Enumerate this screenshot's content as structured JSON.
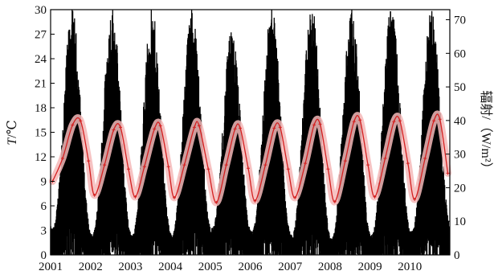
{
  "chart_data": {
    "type": "line",
    "x_axis": {
      "range": [
        2001,
        2011
      ],
      "ticks": [
        2001,
        2002,
        2003,
        2004,
        2005,
        2006,
        2007,
        2008,
        2009,
        2010
      ],
      "tick_labels": [
        "2001",
        "2002",
        "2003",
        "2004",
        "2005",
        "2006",
        "2007",
        "2008",
        "2009",
        "2010"
      ]
    },
    "y_left": {
      "label_italic": "T",
      "label_rest": "/℃",
      "range": [
        0,
        30
      ],
      "ticks": [
        0,
        3,
        6,
        9,
        12,
        15,
        18,
        21,
        24,
        27,
        30
      ],
      "tick_labels": [
        "0",
        "3",
        "6",
        "9",
        "12",
        "15",
        "18",
        "21",
        "24",
        "27",
        "30"
      ]
    },
    "y_right": {
      "label": "辐射/（W/m²）",
      "range": [
        0,
        73
      ],
      "ticks": [
        0,
        10,
        20,
        30,
        40,
        50,
        60,
        70
      ],
      "tick_labels": [
        "0",
        "10",
        "20",
        "30",
        "40",
        "50",
        "60",
        "70"
      ]
    },
    "grid": false,
    "legend": "none",
    "series": [
      {
        "axis": "right",
        "style": "black daily bars",
        "color": "#000000",
        "annual_peaks": [
          {
            "year": 2001,
            "value": 72
          },
          {
            "year": 2002,
            "value": 73
          },
          {
            "year": 2003,
            "value": 72
          },
          {
            "year": 2004,
            "value": 73
          },
          {
            "year": 2005,
            "value": 66
          },
          {
            "year": 2006,
            "value": 73
          },
          {
            "year": 2007,
            "value": 73
          },
          {
            "year": 2008,
            "value": 72
          },
          {
            "year": 2009,
            "value": 73
          },
          {
            "year": 2010,
            "value": 72
          }
        ],
        "annual_troughs": [
          {
            "year": 2001,
            "value": 8
          },
          {
            "year": 2002,
            "value": 6
          },
          {
            "year": 2003,
            "value": 6
          },
          {
            "year": 2004,
            "value": 6
          },
          {
            "year": 2005,
            "value": 8
          },
          {
            "year": 2006,
            "value": 7
          },
          {
            "year": 2007,
            "value": 6
          },
          {
            "year": 2008,
            "value": 5
          },
          {
            "year": 2009,
            "value": 6
          },
          {
            "year": 2010,
            "value": 7
          },
          {
            "year": 2011,
            "value": 8
          }
        ]
      },
      {
        "axis": "left",
        "style": "red line with pink envelope",
        "color": "#d42020",
        "band_color": "#f4b8b8",
        "points": [
          [
            2001.05,
            9.0
          ],
          [
            2001.3,
            11.8
          ],
          [
            2001.55,
            15.9
          ],
          [
            2001.75,
            16.4
          ],
          [
            2001.95,
            11.5
          ],
          [
            2002.1,
            7.3
          ],
          [
            2002.35,
            11.0
          ],
          [
            2002.58,
            15.3
          ],
          [
            2002.75,
            15.6
          ],
          [
            2002.95,
            10.5
          ],
          [
            2003.12,
            7.1
          ],
          [
            2003.35,
            10.8
          ],
          [
            2003.6,
            15.4
          ],
          [
            2003.75,
            15.8
          ],
          [
            2003.95,
            10.8
          ],
          [
            2004.1,
            7.0
          ],
          [
            2004.35,
            11.0
          ],
          [
            2004.6,
            15.6
          ],
          [
            2004.72,
            15.8
          ],
          [
            2004.95,
            10.5
          ],
          [
            2005.15,
            6.4
          ],
          [
            2005.4,
            11.0
          ],
          [
            2005.62,
            15.4
          ],
          [
            2005.75,
            15.5
          ],
          [
            2005.95,
            10.6
          ],
          [
            2006.12,
            6.6
          ],
          [
            2006.38,
            11.0
          ],
          [
            2006.6,
            15.5
          ],
          [
            2006.75,
            15.6
          ],
          [
            2006.95,
            10.5
          ],
          [
            2007.12,
            7.0
          ],
          [
            2007.38,
            11.2
          ],
          [
            2007.6,
            15.9
          ],
          [
            2007.75,
            16.0
          ],
          [
            2007.95,
            10.5
          ],
          [
            2008.12,
            6.5
          ],
          [
            2008.38,
            11.5
          ],
          [
            2008.6,
            16.3
          ],
          [
            2008.75,
            16.5
          ],
          [
            2008.95,
            11.0
          ],
          [
            2009.12,
            7.1
          ],
          [
            2009.38,
            11.8
          ],
          [
            2009.6,
            16.3
          ],
          [
            2009.75,
            16.4
          ],
          [
            2009.95,
            11.2
          ],
          [
            2010.12,
            6.8
          ],
          [
            2010.38,
            11.8
          ],
          [
            2010.6,
            16.4
          ],
          [
            2010.75,
            16.6
          ],
          [
            2010.95,
            10.0
          ]
        ]
      }
    ]
  }
}
